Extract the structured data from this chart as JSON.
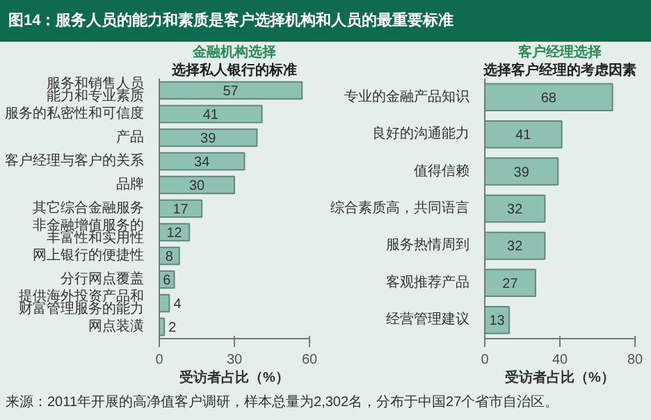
{
  "chart_data": [
    {
      "type": "other",
      "title": "图14：服务人员的能力和素质是客户选择机构和人员的最重要标准",
      "annotations": [
        "来源：2011年开展的高净值客户调研，样本总量为2,302名，分布于中国27个省市自治区。"
      ]
    },
    {
      "type": "bar",
      "orientation": "horizontal",
      "title": "金融机构选择",
      "subtitle": "选择私人银行的标准",
      "xlabel": "受访者占比（%）",
      "categories": [
        "服务和销售人员能力和专业素质",
        "服务的私密性和可信度",
        "产品",
        "客户经理与客户的关系",
        "品牌",
        "其它综合金融服务",
        "非金融增值服务的丰富性和实用性",
        "网上银行的便捷性",
        "分行网点覆盖",
        "提供海外投资产品和财富管理服务的能力",
        "网点装潢"
      ],
      "values": [
        57,
        41,
        39,
        34,
        30,
        17,
        12,
        8,
        6,
        4,
        2
      ],
      "color": "#8fc1b2",
      "xlim": [
        0,
        60
      ],
      "xticks": [
        0,
        30,
        60
      ],
      "data_labels": true
    },
    {
      "type": "bar",
      "orientation": "horizontal",
      "title": "客户经理选择",
      "subtitle": "选择客户经理的考虑因素",
      "xlabel": "受访者占比（%）",
      "categories": [
        "专业的金融产品知识",
        "良好的沟通能力",
        "值得信赖",
        "综合素质高，共同语言",
        "服务热情周到",
        "客观推荐产品",
        "经营管理建议"
      ],
      "values": [
        68,
        41,
        39,
        32,
        32,
        27,
        13
      ],
      "color": "#8fc1b2",
      "xlim": [
        0,
        80
      ],
      "xticks": [
        0,
        40,
        80
      ],
      "data_labels": true
    }
  ]
}
